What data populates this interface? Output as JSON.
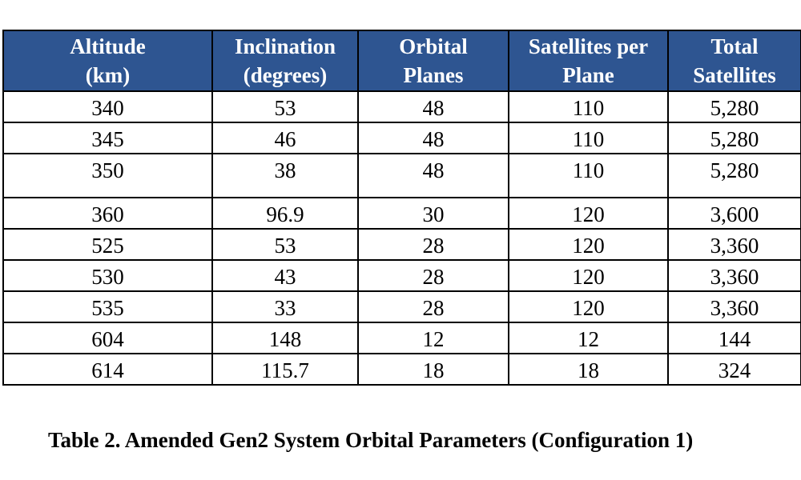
{
  "table": {
    "header_bg": "#2e5591",
    "columns": [
      [
        "Altitude",
        "(km)"
      ],
      [
        "Inclination",
        "(degrees)"
      ],
      [
        "Orbital",
        "Planes"
      ],
      [
        "Satellites per",
        "Plane"
      ],
      [
        "Total",
        "Satellites"
      ]
    ],
    "rows": [
      [
        "340",
        "53",
        "48",
        "110",
        "5,280"
      ],
      [
        "345",
        "46",
        "48",
        "110",
        "5,280"
      ],
      [
        "350",
        "38",
        "48",
        "110",
        "5,280"
      ],
      [
        "360",
        "96.9",
        "30",
        "120",
        "3,600"
      ],
      [
        "525",
        "53",
        "28",
        "120",
        "3,360"
      ],
      [
        "530",
        "43",
        "28",
        "120",
        "3,360"
      ],
      [
        "535",
        "33",
        "28",
        "120",
        "3,360"
      ],
      [
        "604",
        "148",
        "12",
        "12",
        "144"
      ],
      [
        "614",
        "115.7",
        "18",
        "18",
        "324"
      ]
    ]
  },
  "caption": "Table 2.  Amended Gen2 System Orbital Parameters (Configuration 1)"
}
